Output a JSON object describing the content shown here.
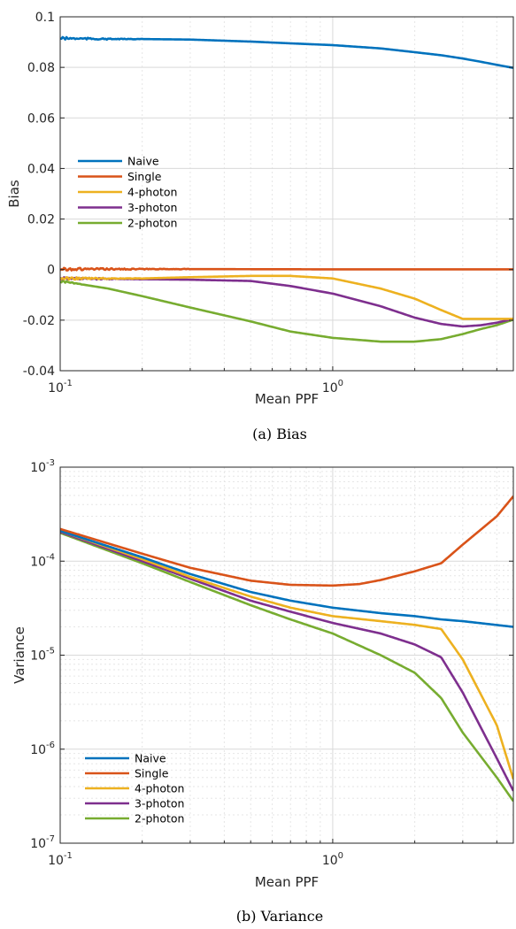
{
  "colors": {
    "naive": "#0072BD",
    "single": "#D95319",
    "four_photon": "#EDB120",
    "three_photon": "#7E2F8E",
    "two_photon": "#77AC30"
  },
  "chart_data": [
    {
      "type": "line",
      "caption": "(a) Bias",
      "xlabel": "Mean PPF",
      "ylabel": "Bias",
      "xscale": "log",
      "yscale": "linear",
      "xlim": [
        0.1,
        4.6
      ],
      "ylim": [
        -0.04,
        0.1
      ],
      "grid": true,
      "legend_position": "center-left",
      "yticks": [
        -0.04,
        -0.02,
        0,
        0.02,
        0.04,
        0.06,
        0.08,
        0.1
      ],
      "ytick_labels": [
        "-0.04",
        "-0.02",
        "0",
        "0.02",
        "0.04",
        "0.06",
        "0.08",
        "0.1"
      ],
      "xticks": [
        0.1,
        1
      ],
      "xtick_labels": [
        {
          "base": "10",
          "exp": "-1"
        },
        {
          "base": "10",
          "exp": "0"
        }
      ],
      "series": [
        {
          "name": "Naive",
          "key": "naive",
          "noisy_until": 0.2,
          "points": [
            [
              0.1,
              0.0915
            ],
            [
              0.15,
              0.0912
            ],
            [
              0.2,
              0.0912
            ],
            [
              0.3,
              0.091
            ],
            [
              0.5,
              0.0902
            ],
            [
              0.7,
              0.0895
            ],
            [
              1.0,
              0.0888
            ],
            [
              1.5,
              0.0875
            ],
            [
              2.0,
              0.086
            ],
            [
              2.5,
              0.0848
            ],
            [
              3.0,
              0.0835
            ],
            [
              3.5,
              0.0822
            ],
            [
              4.0,
              0.081
            ],
            [
              4.6,
              0.0798
            ]
          ]
        },
        {
          "name": "Single",
          "key": "single",
          "noisy_until": 0.3,
          "points": [
            [
              0.1,
              0.0002
            ],
            [
              0.3,
              0.0002
            ],
            [
              1.0,
              0.0001
            ],
            [
              4.6,
              0.0001
            ]
          ]
        },
        {
          "name": "4-photon",
          "key": "four_photon",
          "noisy_until": 0.2,
          "points": [
            [
              0.1,
              -0.0035
            ],
            [
              0.2,
              -0.0035
            ],
            [
              0.3,
              -0.003
            ],
            [
              0.5,
              -0.0025
            ],
            [
              0.7,
              -0.0025
            ],
            [
              1.0,
              -0.0035
            ],
            [
              1.5,
              -0.0075
            ],
            [
              2.0,
              -0.0115
            ],
            [
              2.5,
              -0.016
            ],
            [
              3.0,
              -0.0195
            ],
            [
              4.6,
              -0.0195
            ]
          ]
        },
        {
          "name": "3-photon",
          "key": "three_photon",
          "noisy_until": 0.2,
          "points": [
            [
              0.1,
              -0.0035
            ],
            [
              0.2,
              -0.0038
            ],
            [
              0.3,
              -0.004
            ],
            [
              0.5,
              -0.0045
            ],
            [
              0.7,
              -0.0065
            ],
            [
              1.0,
              -0.0095
            ],
            [
              1.5,
              -0.0145
            ],
            [
              2.0,
              -0.019
            ],
            [
              2.5,
              -0.0215
            ],
            [
              3.0,
              -0.0225
            ],
            [
              3.5,
              -0.022
            ],
            [
              4.0,
              -0.021
            ],
            [
              4.6,
              -0.0195
            ]
          ]
        },
        {
          "name": "2-photon",
          "key": "two_photon",
          "noisy_until": 0.12,
          "points": [
            [
              0.1,
              -0.0045
            ],
            [
              0.15,
              -0.0075
            ],
            [
              0.2,
              -0.0105
            ],
            [
              0.3,
              -0.015
            ],
            [
              0.5,
              -0.0205
            ],
            [
              0.7,
              -0.0245
            ],
            [
              1.0,
              -0.027
            ],
            [
              1.5,
              -0.0285
            ],
            [
              2.0,
              -0.0285
            ],
            [
              2.5,
              -0.0275
            ],
            [
              3.0,
              -0.0255
            ],
            [
              3.5,
              -0.0235
            ],
            [
              4.0,
              -0.022
            ],
            [
              4.6,
              -0.0198
            ]
          ]
        }
      ]
    },
    {
      "type": "line",
      "caption": "(b) Variance",
      "xlabel": "Mean PPF",
      "ylabel": "Variance",
      "xscale": "log",
      "yscale": "log",
      "xlim": [
        0.1,
        4.6
      ],
      "ylim": [
        1e-07,
        0.001
      ],
      "grid": true,
      "legend_position": "bottom-left",
      "yticks": [
        1e-07,
        1e-06,
        1e-05,
        0.0001,
        0.001
      ],
      "ytick_labels": [
        {
          "base": "10",
          "exp": "-7"
        },
        {
          "base": "10",
          "exp": "-6"
        },
        {
          "base": "10",
          "exp": "-5"
        },
        {
          "base": "10",
          "exp": "-4"
        },
        {
          "base": "10",
          "exp": "-3"
        }
      ],
      "xticks": [
        0.1,
        1
      ],
      "xtick_labels": [
        {
          "base": "10",
          "exp": "-1"
        },
        {
          "base": "10",
          "exp": "0"
        }
      ],
      "series": [
        {
          "name": "Naive",
          "key": "naive",
          "points": [
            [
              0.1,
              0.00021
            ],
            [
              0.2,
              0.00011
            ],
            [
              0.3,
              7.3e-05
            ],
            [
              0.5,
              4.7e-05
            ],
            [
              0.7,
              3.8e-05
            ],
            [
              1.0,
              3.2e-05
            ],
            [
              1.5,
              2.8e-05
            ],
            [
              2.0,
              2.6e-05
            ],
            [
              2.5,
              2.4e-05
            ],
            [
              3.0,
              2.3e-05
            ],
            [
              4.6,
              2e-05
            ]
          ]
        },
        {
          "name": "Single",
          "key": "single",
          "points": [
            [
              0.1,
              0.00022
            ],
            [
              0.2,
              0.00012
            ],
            [
              0.3,
              8.5e-05
            ],
            [
              0.5,
              6.2e-05
            ],
            [
              0.7,
              5.6e-05
            ],
            [
              1.0,
              5.5e-05
            ],
            [
              1.25,
              5.7e-05
            ],
            [
              1.5,
              6.3e-05
            ],
            [
              2.0,
              7.8e-05
            ],
            [
              2.5,
              9.5e-05
            ],
            [
              3.0,
              0.00015
            ],
            [
              4.0,
              0.0003
            ],
            [
              4.6,
              0.00049
            ]
          ]
        },
        {
          "name": "4-photon",
          "key": "four_photon",
          "points": [
            [
              0.1,
              0.00021
            ],
            [
              0.2,
              0.000105
            ],
            [
              0.3,
              6.8e-05
            ],
            [
              0.5,
              4.2e-05
            ],
            [
              0.7,
              3.2e-05
            ],
            [
              1.0,
              2.6e-05
            ],
            [
              1.5,
              2.3e-05
            ],
            [
              2.0,
              2.1e-05
            ],
            [
              2.5,
              1.9e-05
            ],
            [
              3.0,
              9e-06
            ],
            [
              4.0,
              1.8e-06
            ],
            [
              4.6,
              4.8e-07
            ]
          ]
        },
        {
          "name": "3-photon",
          "key": "three_photon",
          "points": [
            [
              0.1,
              0.000205
            ],
            [
              0.2,
              0.0001
            ],
            [
              0.3,
              6.5e-05
            ],
            [
              0.5,
              3.8e-05
            ],
            [
              0.7,
              2.9e-05
            ],
            [
              1.0,
              2.2e-05
            ],
            [
              1.5,
              1.7e-05
            ],
            [
              2.0,
              1.3e-05
            ],
            [
              2.5,
              9.5e-06
            ],
            [
              3.0,
              4e-06
            ],
            [
              4.0,
              8e-07
            ],
            [
              4.6,
              3.6e-07
            ]
          ]
        },
        {
          "name": "2-photon",
          "key": "two_photon",
          "points": [
            [
              0.1,
              0.0002
            ],
            [
              0.2,
              9.5e-05
            ],
            [
              0.3,
              6e-05
            ],
            [
              0.5,
              3.4e-05
            ],
            [
              0.7,
              2.4e-05
            ],
            [
              1.0,
              1.7e-05
            ],
            [
              1.5,
              1e-05
            ],
            [
              2.0,
              6.5e-06
            ],
            [
              2.5,
              3.5e-06
            ],
            [
              3.0,
              1.5e-06
            ],
            [
              4.0,
              5e-07
            ],
            [
              4.6,
              2.8e-07
            ]
          ]
        }
      ]
    }
  ]
}
